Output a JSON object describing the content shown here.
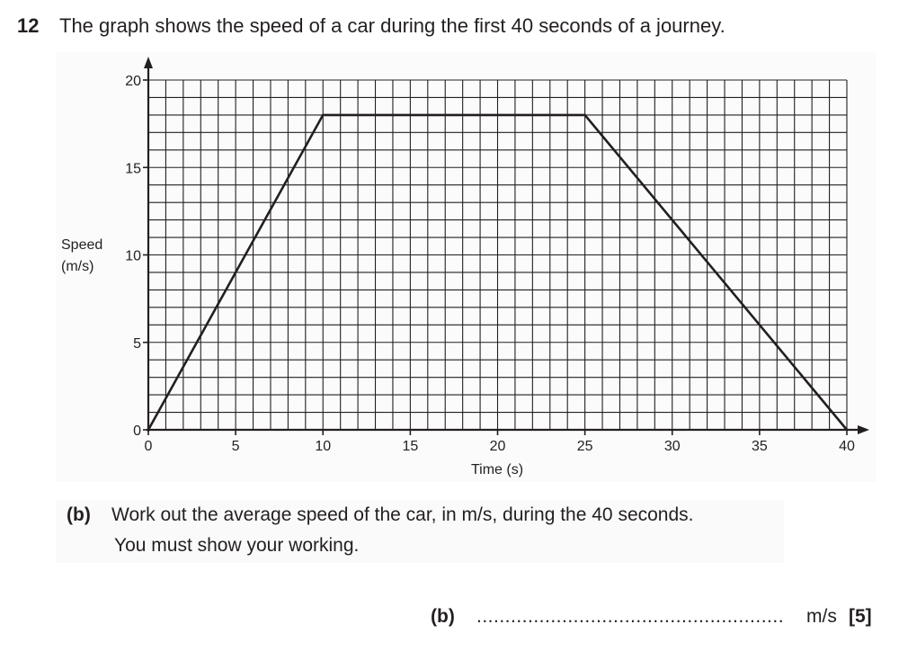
{
  "question": {
    "number": "12",
    "text": "The graph shows the speed of a car during the first 40 seconds of a journey."
  },
  "part_b": {
    "label": "(b)",
    "line1": "Work out the average speed of the car, in m/s, during the 40 seconds.",
    "line2": "You must show your working.",
    "answer_label": "(b)",
    "answer_dots": "......................................................",
    "answer_unit": "m/s",
    "marks": "[5]"
  },
  "chart_data": {
    "type": "line",
    "title": "",
    "xlabel": "Time (s)",
    "ylabel_line1": "Speed",
    "ylabel_line2": "(m/s)",
    "x_ticks": [
      0,
      5,
      10,
      15,
      20,
      25,
      30,
      35,
      40
    ],
    "y_ticks": [
      0,
      5,
      10,
      15,
      20
    ],
    "xlim": [
      0,
      40
    ],
    "ylim": [
      0,
      20
    ],
    "grid": true,
    "grid_minor_step_x": 1,
    "grid_minor_step_y": 1,
    "series": [
      {
        "name": "Speed",
        "x": [
          0,
          10,
          25,
          40
        ],
        "y": [
          0,
          18,
          18,
          0
        ]
      }
    ]
  }
}
